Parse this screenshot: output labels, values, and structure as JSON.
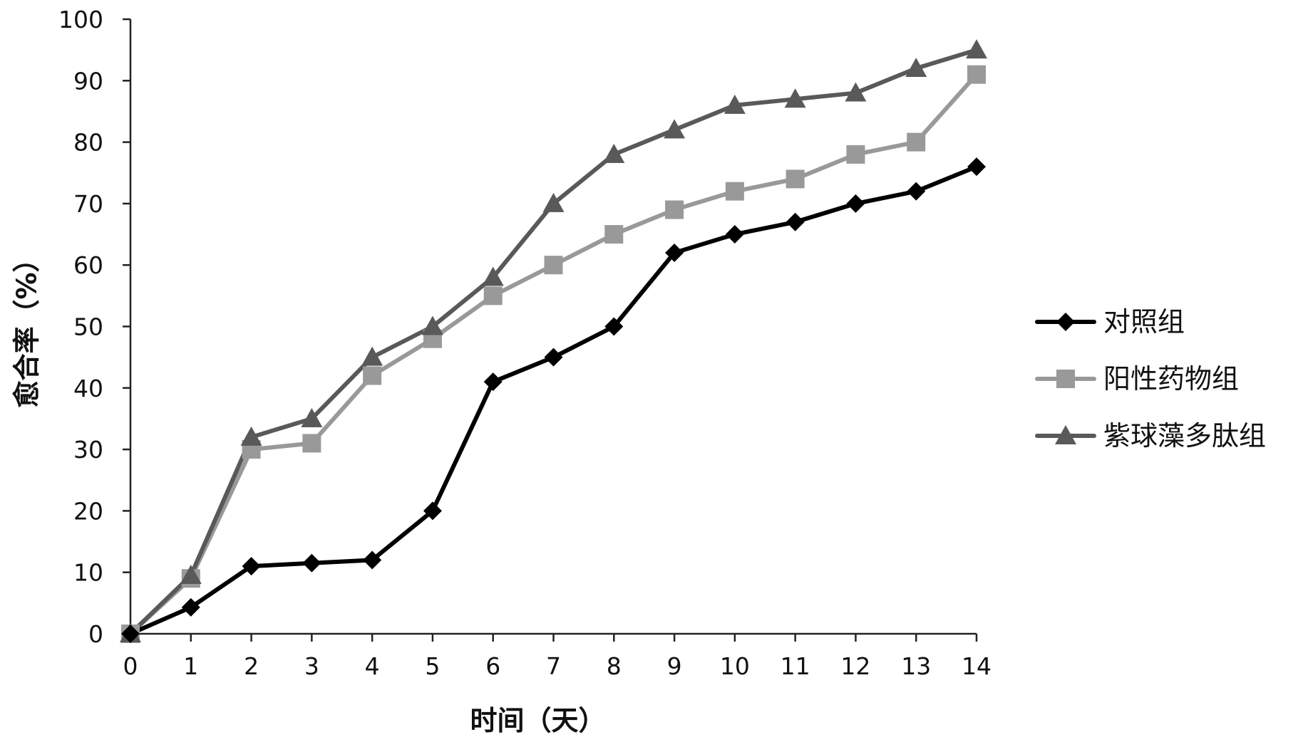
{
  "chart_data": {
    "type": "line",
    "title": "",
    "xlabel": "时间（天）",
    "ylabel": "愈合率（%）",
    "x": [
      0,
      1,
      2,
      3,
      4,
      5,
      6,
      7,
      8,
      9,
      10,
      11,
      12,
      13,
      14
    ],
    "x_tick_labels": [
      "0",
      "1",
      "2",
      "3",
      "4",
      "5",
      "6",
      "7",
      "8",
      "9",
      "10",
      "11",
      "12",
      "13",
      "14"
    ],
    "ylim": [
      0,
      100
    ],
    "y_ticks": [
      0,
      10,
      20,
      30,
      40,
      50,
      60,
      70,
      80,
      90,
      100
    ],
    "y_tick_labels": [
      "0",
      "10",
      "20",
      "30",
      "40",
      "50",
      "60",
      "70",
      "80",
      "90",
      "100"
    ],
    "grid": false,
    "legend_position": "right",
    "series": [
      {
        "name": "对照组",
        "marker": "diamond",
        "color": "#000000",
        "values": [
          0,
          4.3,
          11,
          11.5,
          12,
          20,
          41,
          45,
          50,
          62,
          65,
          67,
          70,
          72,
          76
        ]
      },
      {
        "name": "阳性药物组",
        "marker": "square",
        "color": "#999999",
        "values": [
          0,
          9,
          30,
          31,
          42,
          48,
          55,
          60,
          65,
          69,
          72,
          74,
          78,
          80,
          91
        ]
      },
      {
        "name": "紫球藻多肽组",
        "marker": "triangle",
        "color": "#595959",
        "values": [
          0,
          9.5,
          32,
          35,
          45,
          50,
          58,
          70,
          78,
          82,
          86,
          87,
          88,
          92,
          95
        ]
      }
    ]
  }
}
